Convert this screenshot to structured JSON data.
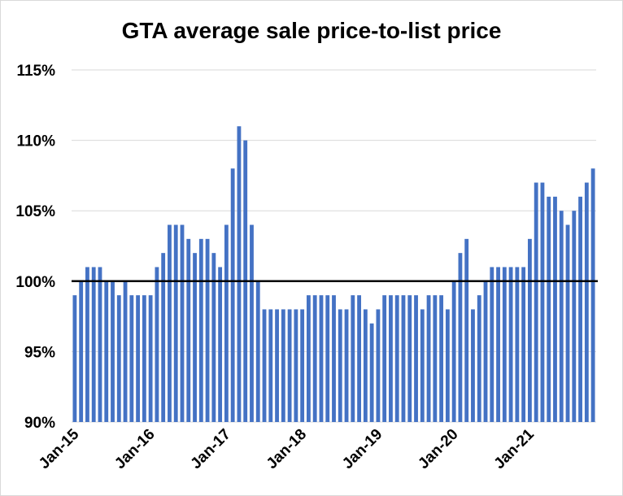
{
  "chart_data": {
    "type": "bar",
    "title": "GTA average sale price-to-list price",
    "xlabel": "",
    "ylabel": "",
    "ylim": [
      90,
      115
    ],
    "yticks": [
      "90%",
      "95%",
      "100%",
      "105%",
      "110%",
      "115%"
    ],
    "ytick_values": [
      90,
      95,
      100,
      105,
      110,
      115
    ],
    "xtick_labels": [
      "Jan-15",
      "Jan-16",
      "Jan-17",
      "Jan-18",
      "Jan-19",
      "Jan-20",
      "Jan-21"
    ],
    "xtick_indices": [
      0,
      12,
      24,
      36,
      48,
      60,
      72
    ],
    "reference_line": 100,
    "grid": true,
    "bar_color": "#4472c4",
    "reference_line_color": "#000000",
    "values": [
      99,
      100,
      101,
      101,
      101,
      100,
      100,
      99,
      100,
      99,
      99,
      99,
      99,
      101,
      102,
      104,
      104,
      104,
      103,
      102,
      103,
      103,
      102,
      101,
      104,
      108,
      111,
      110,
      104,
      100,
      98,
      98,
      98,
      98,
      98,
      98,
      98,
      99,
      99,
      99,
      99,
      99,
      98,
      98,
      99,
      99,
      98,
      97,
      98,
      99,
      99,
      99,
      99,
      99,
      99,
      98,
      99,
      99,
      99,
      98,
      100,
      102,
      103,
      98,
      99,
      100,
      101,
      101,
      101,
      101,
      101,
      101,
      103,
      107,
      107,
      106,
      106,
      105,
      104,
      105,
      106,
      107,
      108
    ]
  }
}
